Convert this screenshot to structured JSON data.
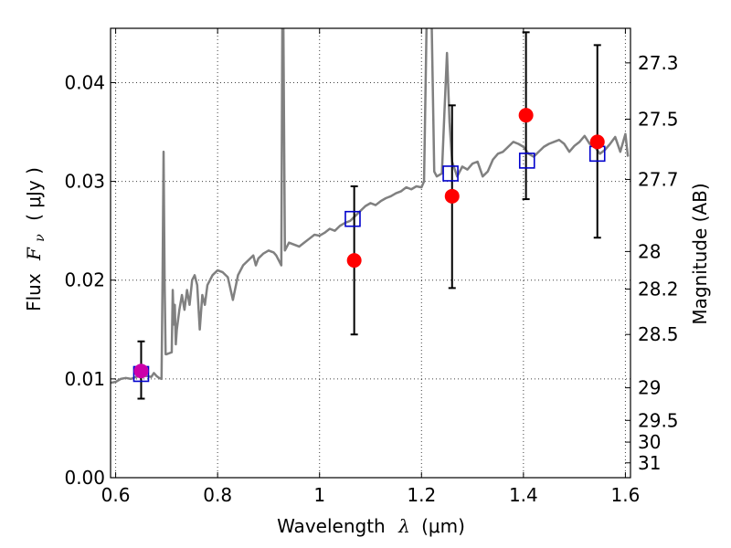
{
  "chart_data": {
    "type": "scatter",
    "title": "",
    "xlabel": {
      "prefix": "Wavelength",
      "symbol": "λ",
      "unit": "(μm)"
    },
    "ylabel": {
      "prefix": "Flux",
      "symbol": "F",
      "subscript": "ν",
      "unit": "( μJy )"
    },
    "y2label": "Magnitude (AB)",
    "xlim": [
      0.59,
      1.61
    ],
    "ylim": [
      0.0,
      0.0455
    ],
    "x_ticks": [
      0.6,
      0.8,
      1.0,
      1.2,
      1.4,
      1.6
    ],
    "x_tick_labels": [
      "0.6",
      "0.8",
      "1",
      "1.2",
      "1.4",
      "1.6"
    ],
    "y_ticks": [
      0.0,
      0.01,
      0.02,
      0.03,
      0.04
    ],
    "y_tick_labels": [
      "0.00",
      "0.01",
      "0.02",
      "0.03",
      "0.04"
    ],
    "y2_ticks": [
      {
        "label": "27.3",
        "flux": 0.042
      },
      {
        "label": "27.5",
        "flux": 0.0363
      },
      {
        "label": "27.7",
        "flux": 0.0302
      },
      {
        "label": "28",
        "flux": 0.0229
      },
      {
        "label": "28.2",
        "flux": 0.0191
      },
      {
        "label": "28.5",
        "flux": 0.0145
      },
      {
        "label": "29",
        "flux": 0.0091
      },
      {
        "label": "29.5",
        "flux": 0.0058
      },
      {
        "label": "30",
        "flux": 0.0036
      },
      {
        "label": "31",
        "flux": 0.0015
      }
    ],
    "grid": true,
    "series": [
      {
        "role": "model-spectrum",
        "color": "#808080",
        "points": [
          [
            0.59,
            0.0096
          ],
          [
            0.6,
            0.0097
          ],
          [
            0.61,
            0.01
          ],
          [
            0.62,
            0.0101
          ],
          [
            0.63,
            0.01
          ],
          [
            0.64,
            0.0102
          ],
          [
            0.65,
            0.0103
          ],
          [
            0.66,
            0.0103
          ],
          [
            0.67,
            0.0102
          ],
          [
            0.675,
            0.0106
          ],
          [
            0.68,
            0.0103
          ],
          [
            0.685,
            0.0101
          ],
          [
            0.69,
            0.01
          ],
          [
            0.692,
            0.02
          ],
          [
            0.694,
            0.033
          ],
          [
            0.696,
            0.02
          ],
          [
            0.698,
            0.0125
          ],
          [
            0.7,
            0.0125
          ],
          [
            0.705,
            0.0126
          ],
          [
            0.71,
            0.0127
          ],
          [
            0.712,
            0.019
          ],
          [
            0.714,
            0.0155
          ],
          [
            0.716,
            0.0175
          ],
          [
            0.718,
            0.0135
          ],
          [
            0.72,
            0.015
          ],
          [
            0.725,
            0.017
          ],
          [
            0.73,
            0.0185
          ],
          [
            0.735,
            0.017
          ],
          [
            0.74,
            0.019
          ],
          [
            0.745,
            0.0175
          ],
          [
            0.75,
            0.02
          ],
          [
            0.755,
            0.0205
          ],
          [
            0.76,
            0.0195
          ],
          [
            0.765,
            0.015
          ],
          [
            0.77,
            0.0185
          ],
          [
            0.775,
            0.0175
          ],
          [
            0.78,
            0.0195
          ],
          [
            0.79,
            0.0205
          ],
          [
            0.8,
            0.021
          ],
          [
            0.81,
            0.0208
          ],
          [
            0.82,
            0.0203
          ],
          [
            0.83,
            0.018
          ],
          [
            0.84,
            0.0205
          ],
          [
            0.85,
            0.0215
          ],
          [
            0.86,
            0.022
          ],
          [
            0.87,
            0.0225
          ],
          [
            0.875,
            0.0215
          ],
          [
            0.88,
            0.0222
          ],
          [
            0.89,
            0.0227
          ],
          [
            0.9,
            0.023
          ],
          [
            0.91,
            0.0228
          ],
          [
            0.915,
            0.0225
          ],
          [
            0.92,
            0.022
          ],
          [
            0.925,
            0.0215
          ],
          [
            0.927,
            0.046
          ],
          [
            0.929,
            0.046
          ],
          [
            0.932,
            0.023
          ],
          [
            0.94,
            0.0238
          ],
          [
            0.95,
            0.0236
          ],
          [
            0.96,
            0.0234
          ],
          [
            0.97,
            0.0238
          ],
          [
            0.98,
            0.0242
          ],
          [
            0.99,
            0.0246
          ],
          [
            1.0,
            0.0245
          ],
          [
            1.01,
            0.0248
          ],
          [
            1.02,
            0.0252
          ],
          [
            1.03,
            0.025
          ],
          [
            1.04,
            0.0255
          ],
          [
            1.05,
            0.0258
          ],
          [
            1.06,
            0.026
          ],
          [
            1.07,
            0.0265
          ],
          [
            1.08,
            0.027
          ],
          [
            1.09,
            0.0275
          ],
          [
            1.1,
            0.0278
          ],
          [
            1.11,
            0.0276
          ],
          [
            1.12,
            0.028
          ],
          [
            1.13,
            0.0283
          ],
          [
            1.14,
            0.0285
          ],
          [
            1.15,
            0.0288
          ],
          [
            1.16,
            0.029
          ],
          [
            1.17,
            0.0294
          ],
          [
            1.18,
            0.0292
          ],
          [
            1.19,
            0.0295
          ],
          [
            1.2,
            0.0294
          ],
          [
            1.205,
            0.03
          ],
          [
            1.21,
            0.046
          ],
          [
            1.22,
            0.046
          ],
          [
            1.225,
            0.031
          ],
          [
            1.23,
            0.0305
          ],
          [
            1.24,
            0.0308
          ],
          [
            1.245,
            0.037
          ],
          [
            1.25,
            0.043
          ],
          [
            1.255,
            0.036
          ],
          [
            1.26,
            0.032
          ],
          [
            1.27,
            0.0305
          ],
          [
            1.28,
            0.0315
          ],
          [
            1.29,
            0.0312
          ],
          [
            1.3,
            0.0318
          ],
          [
            1.31,
            0.032
          ],
          [
            1.32,
            0.0305
          ],
          [
            1.33,
            0.031
          ],
          [
            1.34,
            0.0322
          ],
          [
            1.35,
            0.0328
          ],
          [
            1.36,
            0.033
          ],
          [
            1.37,
            0.0335
          ],
          [
            1.38,
            0.034
          ],
          [
            1.39,
            0.0338
          ],
          [
            1.4,
            0.0335
          ],
          [
            1.41,
            0.0328
          ],
          [
            1.42,
            0.0325
          ],
          [
            1.43,
            0.033
          ],
          [
            1.44,
            0.0335
          ],
          [
            1.45,
            0.0338
          ],
          [
            1.46,
            0.034
          ],
          [
            1.47,
            0.0342
          ],
          [
            1.48,
            0.0338
          ],
          [
            1.49,
            0.033
          ],
          [
            1.5,
            0.0336
          ],
          [
            1.51,
            0.034
          ],
          [
            1.52,
            0.0346
          ],
          [
            1.53,
            0.0338
          ],
          [
            1.54,
            0.0335
          ],
          [
            1.55,
            0.0328
          ],
          [
            1.56,
            0.0332
          ],
          [
            1.57,
            0.0338
          ],
          [
            1.58,
            0.0345
          ],
          [
            1.59,
            0.033
          ],
          [
            1.6,
            0.0348
          ],
          [
            1.605,
            0.0325
          ]
        ]
      },
      {
        "role": "model-photometry",
        "color": "#0000cc",
        "marker": "open-square",
        "points": [
          [
            0.65,
            0.0105
          ],
          [
            1.065,
            0.0262
          ],
          [
            1.257,
            0.0308
          ],
          [
            1.407,
            0.0321
          ],
          [
            1.545,
            0.0328
          ]
        ]
      },
      {
        "role": "observed-photometry",
        "color": "#ff0000",
        "marker": "filled-circle",
        "points": [
          {
            "x": 0.65,
            "y": 0.0108,
            "ylo": 0.008,
            "yhi": 0.0138
          },
          {
            "x": 1.068,
            "y": 0.022,
            "ylo": 0.0145,
            "yhi": 0.0295
          },
          {
            "x": 1.26,
            "y": 0.0285,
            "ylo": 0.0192,
            "yhi": 0.0377
          },
          {
            "x": 1.405,
            "y": 0.0367,
            "ylo": 0.0282,
            "yhi": 0.0451
          },
          {
            "x": 1.545,
            "y": 0.034,
            "ylo": 0.0243,
            "yhi": 0.0438
          }
        ]
      }
    ]
  }
}
